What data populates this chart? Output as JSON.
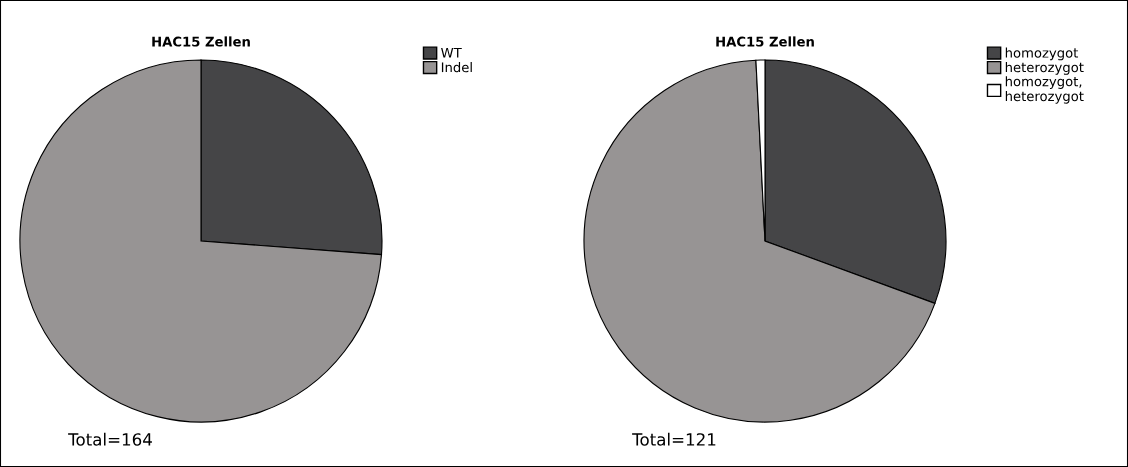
{
  "chart_data": [
    {
      "type": "pie",
      "title": "HAC15 Zellen",
      "categories": [
        "WT",
        "Indel"
      ],
      "values": [
        26.2,
        73.8
      ],
      "colors": [
        "#454547",
        "#979494"
      ],
      "legend": "right",
      "annotations": [
        "Total=164"
      ]
    },
    {
      "type": "pie",
      "title": "HAC15 Zellen",
      "categories": [
        "homozygot",
        "heterozygot",
        "homozygot,\nheterozygot"
      ],
      "values": [
        30.6,
        68.6,
        0.8
      ],
      "colors": [
        "#454547",
        "#979494",
        "#ffffff"
      ],
      "legend": "right",
      "annotations": [
        "Total=121"
      ]
    }
  ]
}
